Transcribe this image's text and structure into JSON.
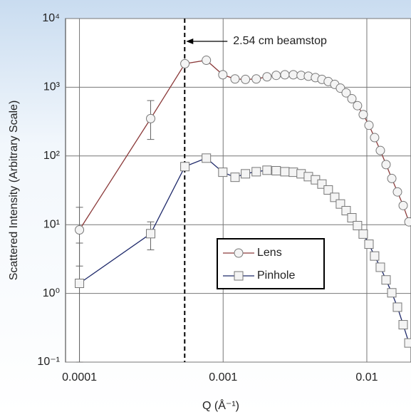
{
  "chart_data": {
    "type": "scatter",
    "xlabel": "Q (Å⁻¹)",
    "ylabel": "Scattered Intensity (Arbitrary Scale)",
    "log_x": true,
    "log_y": true,
    "grid": true,
    "xlim": [
      8e-05,
      0.0203
    ],
    "ylim": [
      0.1,
      10000
    ],
    "xticks": [
      0.0001,
      0.001,
      0.01
    ],
    "yticks": [
      {
        "value": 0.1,
        "label": "10⁻¹"
      },
      {
        "value": 1,
        "label": "10⁰"
      },
      {
        "value": 10,
        "label": "10¹"
      },
      {
        "value": 100,
        "label": "10²"
      },
      {
        "value": 1000,
        "label": "10³"
      },
      {
        "value": 10000,
        "label": "10⁴"
      }
    ],
    "annotation": {
      "text": "2.54 cm beamstop",
      "x": 0.00054
    },
    "legend_position": "center",
    "x": [
      0.0001,
      0.000313,
      0.000542,
      0.000764,
      0.000995,
      0.00121,
      0.00143,
      0.0017,
      0.00202,
      0.00234,
      0.00269,
      0.00308,
      0.00349,
      0.00392,
      0.00439,
      0.00487,
      0.00539,
      0.00598,
      0.00655,
      0.00718,
      0.00787,
      0.00861,
      0.00944,
      0.01035,
      0.01133,
      0.01242,
      0.01361,
      0.01492,
      0.01634,
      0.01791,
      0.01963
    ],
    "series": [
      {
        "name": "Lens",
        "color": "#8b3a3a",
        "marker": "circle",
        "values": [
          8.4,
          350,
          2200,
          2470,
          1520,
          1320,
          1300,
          1320,
          1420,
          1490,
          1520,
          1520,
          1490,
          1450,
          1380,
          1300,
          1210,
          1100,
          970,
          830,
          680,
          540,
          400,
          280,
          185,
          120,
          75,
          47,
          30,
          19,
          11
        ],
        "error_bars": [
          {
            "index": 0,
            "low": 2.5,
            "high": 17.9
          },
          {
            "index": 1,
            "low": 174,
            "high": 640
          }
        ]
      },
      {
        "name": "Pinhole",
        "color": "#1f2a6b",
        "marker": "square",
        "values": [
          1.4,
          7.4,
          70,
          93,
          58,
          49,
          55,
          59,
          62,
          61,
          59,
          58,
          55,
          50,
          45,
          39,
          32,
          25,
          20,
          16,
          12.6,
          9.7,
          7.3,
          5.2,
          3.5,
          2.4,
          1.57,
          1.02,
          0.63,
          0.35,
          0.19
        ],
        "error_bars": [
          {
            "index": 0,
            "low": 0.1,
            "high": 5.4
          },
          {
            "index": 1,
            "low": 4.3,
            "high": 11
          }
        ]
      }
    ]
  }
}
